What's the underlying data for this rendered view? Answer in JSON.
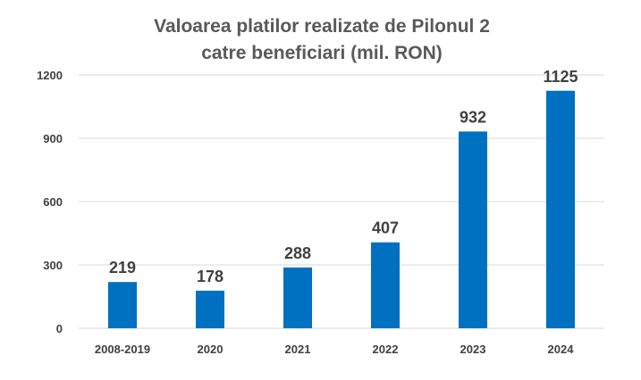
{
  "chart_data": {
    "type": "bar",
    "title": [
      "Valoarea platilor realizate de Pilonul 2",
      "catre beneficiari (mil. RON)"
    ],
    "categories": [
      "2008-2019",
      "2020",
      "2021",
      "2022",
      "2023",
      "2024"
    ],
    "values": [
      219,
      178,
      288,
      407,
      932,
      1125
    ],
    "data_labels": [
      "219",
      "178",
      "288",
      "407",
      "932",
      "1125"
    ],
    "y_ticks": [
      0,
      300,
      600,
      900,
      1200
    ],
    "ylim": [
      0,
      1200
    ],
    "xlabel": "",
    "ylabel": "",
    "grid": true,
    "legend": "none",
    "bar_color": "#0070c0"
  }
}
